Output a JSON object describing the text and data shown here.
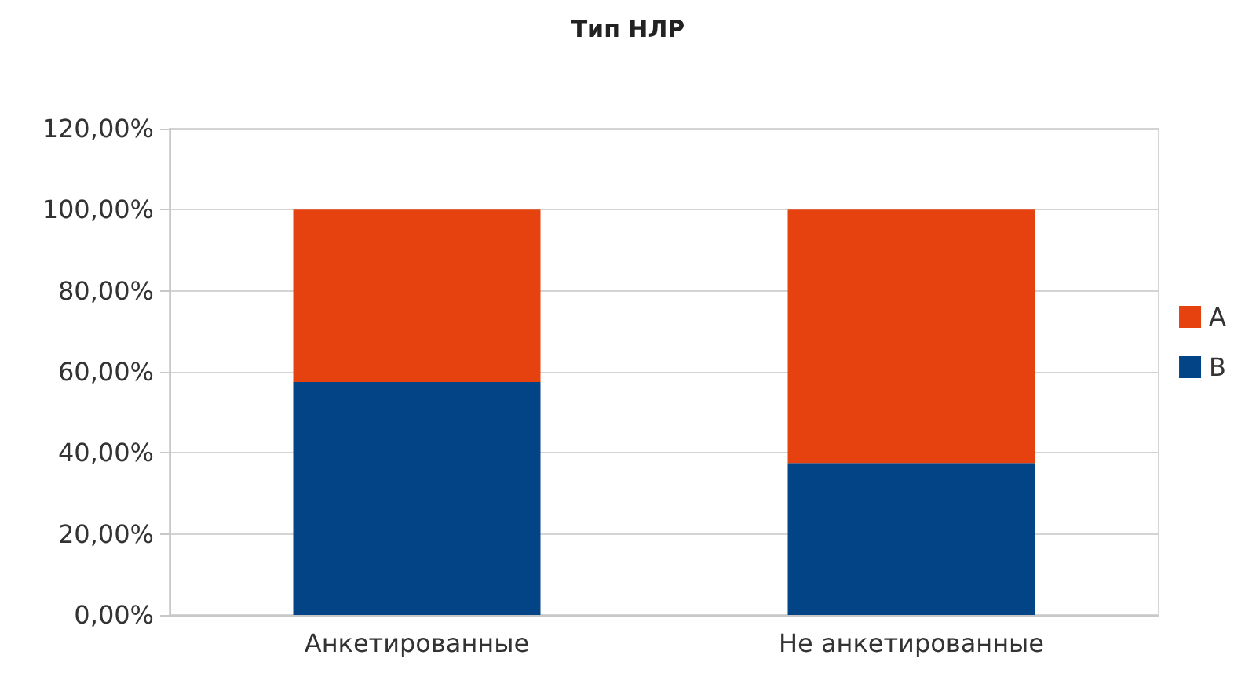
{
  "chart_data": {
    "type": "bar",
    "title": "Тип НЛР",
    "stacked": true,
    "categories": [
      "Анкетированные",
      "Не анкетированные"
    ],
    "series": [
      {
        "name": "B",
        "color": "#034486",
        "values": [
          57.5,
          37.5
        ]
      },
      {
        "name": "A",
        "color": "#e5420f",
        "values": [
          42.5,
          62.5
        ]
      }
    ],
    "ylim": [
      0,
      120
    ],
    "yticks": [
      {
        "value": 0,
        "label": "0,00%"
      },
      {
        "value": 20,
        "label": "20,00%"
      },
      {
        "value": 40,
        "label": "40,00%"
      },
      {
        "value": 60,
        "label": "60,00%"
      },
      {
        "value": 80,
        "label": "80,00%"
      },
      {
        "value": 100,
        "label": "100,00%"
      },
      {
        "value": 120,
        "label": "120,00%"
      }
    ],
    "grid": "y",
    "legend": "right"
  }
}
